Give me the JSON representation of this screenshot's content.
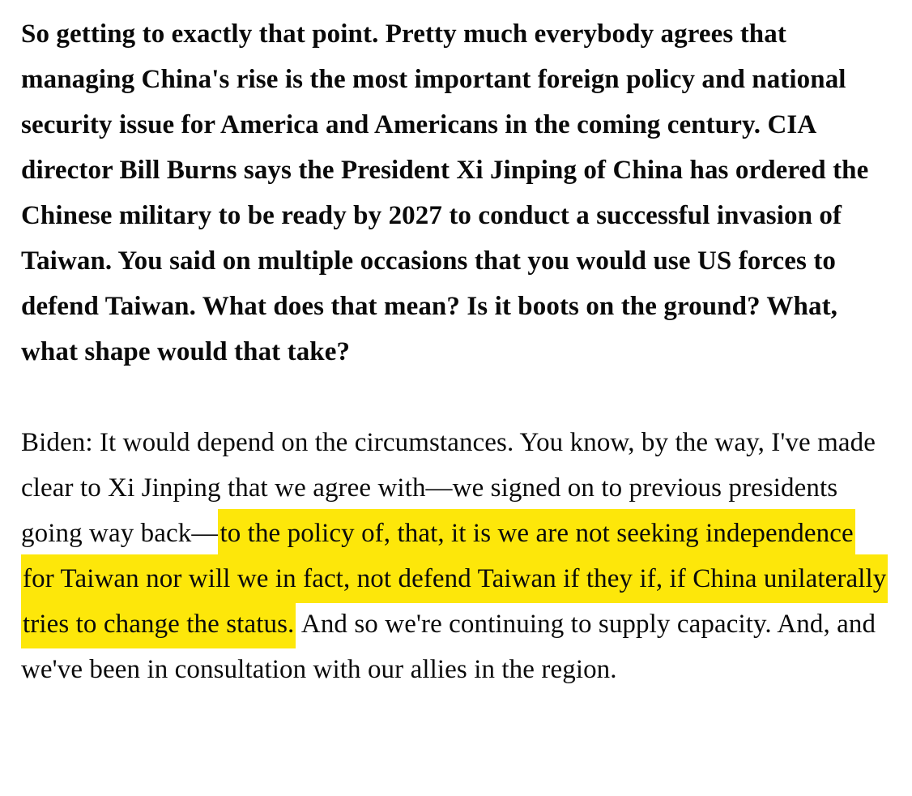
{
  "page": {
    "background_color": "#ffffff",
    "text_color": "#0a0a0a",
    "highlight_color": "#fde70a"
  },
  "transcript": {
    "question": "So getting to exactly that point. Pretty much everybody agrees that managing China's rise is the most important foreign policy and national security issue for America and Americans in the coming century. CIA director Bill Burns says the President Xi Jinping of China has ordered the Chinese military to be ready by 2027 to conduct a successful invasion of Taiwan. You said on multiple occasions that you would use US forces to defend Taiwan. What does that mean? Is it boots on the ground? What, what shape would that take?",
    "answer": {
      "pre_highlight": "Biden: It would depend on the circumstances. You know, by the way, I've made clear to Xi Jinping that we agree with—we signed on to previous presidents going way back—",
      "highlighted": "to the policy of, that, it is we are not seeking independence for Taiwan nor will we in fact, not defend Taiwan if they if, if China unilaterally tries to change the status.",
      "post_highlight": " And so we're continuing to supply capacity. And, and we've been in consultation with our allies in the region."
    }
  }
}
